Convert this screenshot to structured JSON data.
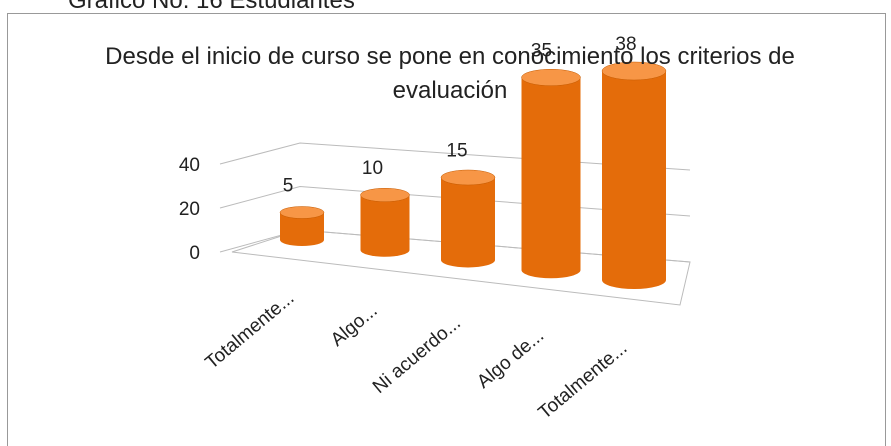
{
  "header": "Gráfico No. 16 Estudiantes",
  "chart_data": {
    "type": "bar3d",
    "title": "Desde el inicio de curso se pone en conocimiento los criterios de evaluación",
    "categories": [
      "Totalmente...",
      "Algo...",
      "Ni acuerdo...",
      "Algo de...",
      "Totalmente..."
    ],
    "values": [
      5,
      10,
      15,
      35,
      38
    ],
    "color": "#e46c0a",
    "ylim": [
      0,
      40
    ],
    "yticks": [
      0,
      20,
      40
    ],
    "grid": true
  }
}
